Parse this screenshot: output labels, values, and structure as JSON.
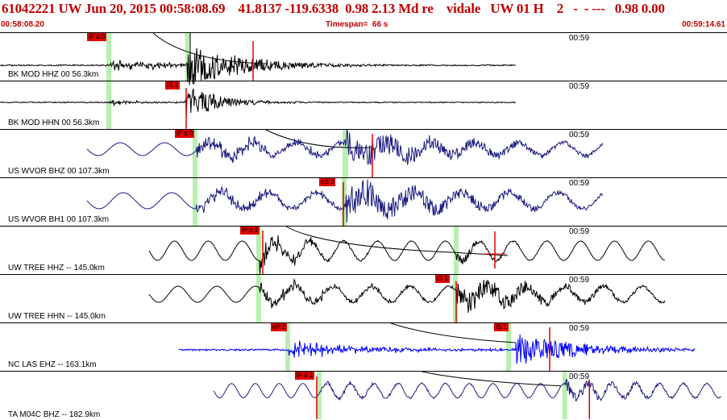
{
  "header": {
    "title_line": "61042221 UW Jun 20, 2015 00:58:08.69    41.8137 -119.6338  0.98 2.13 Md re    vidale   UW 01 H    2   -  - ---   0.98 0.00",
    "start_time": "00:58:08.20",
    "timespan": "Timespan=  66 s",
    "end_time": "00:59:14.61"
  },
  "colors": {
    "header": "#c00000",
    "pick": "#e00000",
    "arrival": "#b8f0b0",
    "trace_black": "#000000",
    "trace_navy": "#1a1a80",
    "trace_blue": "#0000ff"
  },
  "traces": [
    {
      "label": "BK MOD HHZ 00 56.3km",
      "time_mark": "00:59",
      "pick_label": "iP d 0",
      "color": "#000000"
    },
    {
      "label": "BK MOD HHN 00 56.3km",
      "time_mark": "00:59",
      "pick_label": "iS 1",
      "color": "#000000"
    },
    {
      "label": "US WVOR BHZ 00 107.3km",
      "time_mark": "00:59",
      "pick_label": "iP d 0",
      "color": "#1a1a80"
    },
    {
      "label": "US WVOR BH1 00 107.3km",
      "time_mark": "00:59",
      "pick_label": "eS 2",
      "color": "#1a1a80"
    },
    {
      "label": "UW TREE HHZ -- 145.0km",
      "time_mark": "00:59",
      "pick_label": "iP d 1",
      "color": "#000000"
    },
    {
      "label": "UW TREE HHN -- 145.0km",
      "time_mark": "00:59",
      "pick_label": "iS 1",
      "color": "#000000"
    },
    {
      "label": "NC LAS EHZ -- 163.1km",
      "time_mark": "00:59",
      "pick_label": "eP 2",
      "pick_label_2": "iS 1",
      "color": "#0000ff"
    },
    {
      "label": "TA M04C BHZ -- 182.9km",
      "time_mark": "00:59",
      "pick_label": "iP d 1",
      "color": "#1a1a80"
    }
  ]
}
